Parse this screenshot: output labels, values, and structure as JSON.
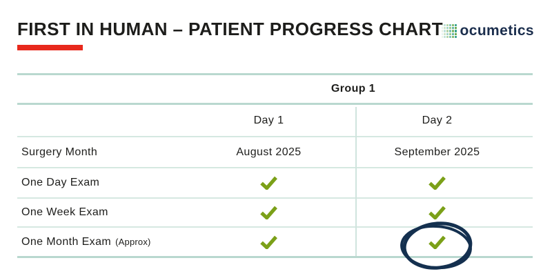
{
  "header": {
    "title": "FIRST IN HUMAN – PATIENT PROGRESS CHART",
    "logo_text": "ocumetics"
  },
  "table": {
    "group_header": "Group 1",
    "columns": [
      "Day 1",
      "Day 2"
    ],
    "rows": [
      {
        "label": "Surgery Month",
        "day1": "August 2025",
        "day2": "September 2025"
      },
      {
        "label": "One Day Exam",
        "day1": "check",
        "day2": "check"
      },
      {
        "label": "One Week Exam",
        "day1": "check",
        "day2": "check"
      },
      {
        "label": "One Month Exam",
        "label_suffix": "(Approx)",
        "day1": "check",
        "day2": "check",
        "day2_annotation": "hand-drawn-circle"
      }
    ]
  },
  "icons": {
    "check": "✔",
    "logo_dots": "dot-grid"
  },
  "colors": {
    "accent_red": "#E8291C",
    "check_green": "#7BA018",
    "table_line_strong": "#B9D8CF",
    "table_line_light": "#D5E8E1",
    "annotation_navy": "#14304F",
    "logo_navy": "#1B2E4D",
    "logo_teal": "#35A18D",
    "logo_green": "#64A847",
    "title_text": "#1D1D1B"
  }
}
